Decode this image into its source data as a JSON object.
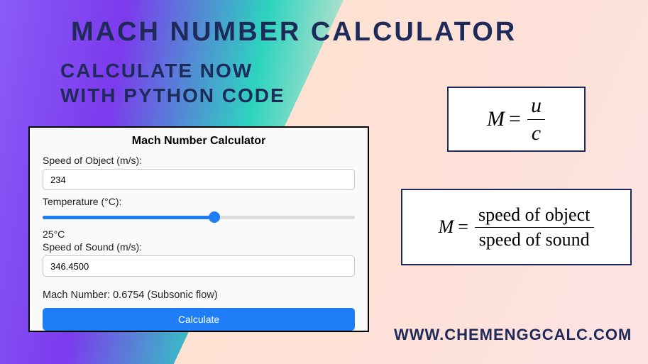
{
  "header": {
    "title": "MACH NUMBER CALCULATOR",
    "subtitle_line1": "CALCULATE NOW",
    "subtitle_line2": "WITH PYTHON CODE"
  },
  "calculator": {
    "title": "Mach Number Calculator",
    "speed_label": "Speed of Object (m/s):",
    "speed_value": "234",
    "temp_label": "Temperature (°C):",
    "temp_value": "25°C",
    "temp_slider_percent": 55,
    "sound_label": "Speed of Sound (m/s):",
    "sound_value": "346.4500",
    "result_text": "Mach Number: 0.6754 (Subsonic flow)",
    "button_label": "Calculate"
  },
  "formula1": {
    "lhs": "M",
    "numerator": "u",
    "denominator": "c"
  },
  "formula2": {
    "lhs": "M",
    "numerator": "speed of object",
    "denominator": "speed of sound"
  },
  "footer": {
    "url": "WWW.CHEMENGGCALC.COM"
  },
  "colors": {
    "heading": "#1e2a5a",
    "button": "#1f7df7",
    "slider_fill": "#1f7df7",
    "slider_track": "#dcdcdc",
    "border": "#000000",
    "calc_bg": "#fafafa",
    "gradient_left": "#8a5cf6",
    "gradient_mid": "#2dd4bf",
    "gradient_right": "#fde4e4"
  }
}
